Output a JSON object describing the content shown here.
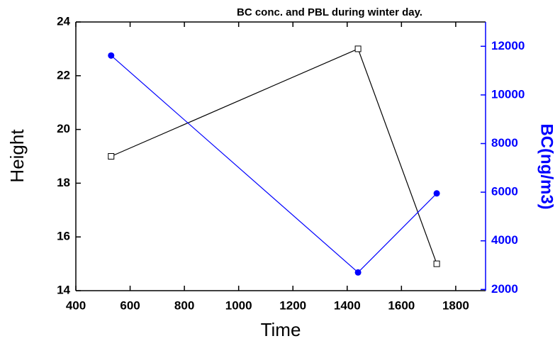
{
  "chart_data": {
    "type": "line",
    "title": "BC conc. and PBL during winter day.",
    "x_label": "Time",
    "y_label": "Height",
    "y2_label": "BC(ng/m3)",
    "x": [
      530,
      1440,
      1730
    ],
    "series": [
      {
        "color": "#000000",
        "marker": "square",
        "values": [
          19,
          23,
          15
        ]
      },
      {
        "color": "#0000ff",
        "marker": "circle",
        "axis": "y2",
        "values": [
          11620,
          2700,
          5950
        ]
      }
    ],
    "xlim": [
      400,
      1910
    ],
    "xticks": [
      400,
      600,
      800,
      1000,
      1200,
      1400,
      1600,
      1800
    ],
    "ylim": [
      14,
      24
    ],
    "yticks": [
      14,
      16,
      18,
      20,
      22,
      24
    ],
    "y2lim": [
      1950,
      13000
    ],
    "y2ticks": [
      2000,
      4000,
      6000,
      8000,
      10000,
      12000
    ],
    "y2_color": "#0000ff"
  }
}
